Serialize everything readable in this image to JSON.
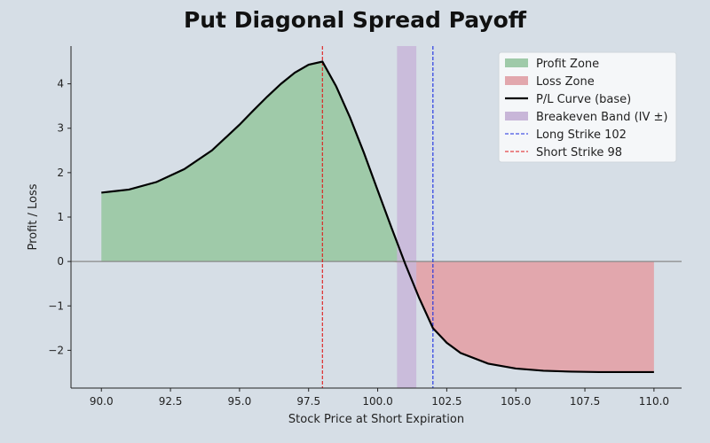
{
  "chart_data": {
    "type": "line",
    "title": "Put Diagonal Spread Payoff",
    "xlabel": "Stock Price at Short Expiration",
    "ylabel": "Profit / Loss",
    "xlim": [
      88.9,
      111
    ],
    "ylim": [
      -2.85,
      4.85
    ],
    "x_ticks": [
      90.0,
      92.5,
      95.0,
      97.5,
      100.0,
      102.5,
      105.0,
      107.5,
      110.0
    ],
    "x_tick_labels": [
      "90.0",
      "92.5",
      "95.0",
      "97.5",
      "100.0",
      "102.5",
      "105.0",
      "107.5",
      "110.0"
    ],
    "y_ticks": [
      -2,
      -1,
      0,
      1,
      2,
      3,
      4
    ],
    "y_tick_labels": [
      "−2",
      "−1",
      "0",
      "1",
      "2",
      "3",
      "4"
    ],
    "series": [
      {
        "name": "P/L Curve (base)",
        "color": "#000000",
        "x": [
          90.0,
          91.0,
          92.0,
          93.0,
          94.0,
          95.0,
          95.5,
          96.0,
          96.5,
          97.0,
          97.5,
          98.0,
          98.5,
          99.0,
          99.5,
          100.0,
          100.5,
          101.0,
          101.5,
          102.0,
          102.5,
          103.0,
          104.0,
          105.0,
          106.0,
          107.0,
          108.0,
          109.0,
          110.0
        ],
        "y": [
          1.55,
          1.62,
          1.79,
          2.08,
          2.5,
          3.08,
          3.4,
          3.71,
          4.0,
          4.25,
          4.43,
          4.5,
          3.94,
          3.24,
          2.45,
          1.6,
          0.76,
          -0.06,
          -0.82,
          -1.5,
          -1.83,
          -2.06,
          -2.3,
          -2.41,
          -2.46,
          -2.48,
          -2.49,
          -2.49,
          -2.49
        ]
      }
    ],
    "profit_zone": {
      "name": "Profit Zone",
      "color": "#9fcaa9"
    },
    "loss_zone": {
      "name": "Loss Zone",
      "color": "#e2a7ad"
    },
    "breakeven_band": {
      "name": "Breakeven Band (IV ±)",
      "x_range": [
        100.7,
        101.4
      ],
      "color": "#c8b6d8"
    },
    "vlines": [
      {
        "name": "Long Strike 102",
        "x": 102,
        "color": "#1a2de0"
      },
      {
        "name": "Short Strike 98",
        "x": 98,
        "color": "#e01a1a"
      }
    ],
    "legend_position": "top-right",
    "grid": false
  }
}
